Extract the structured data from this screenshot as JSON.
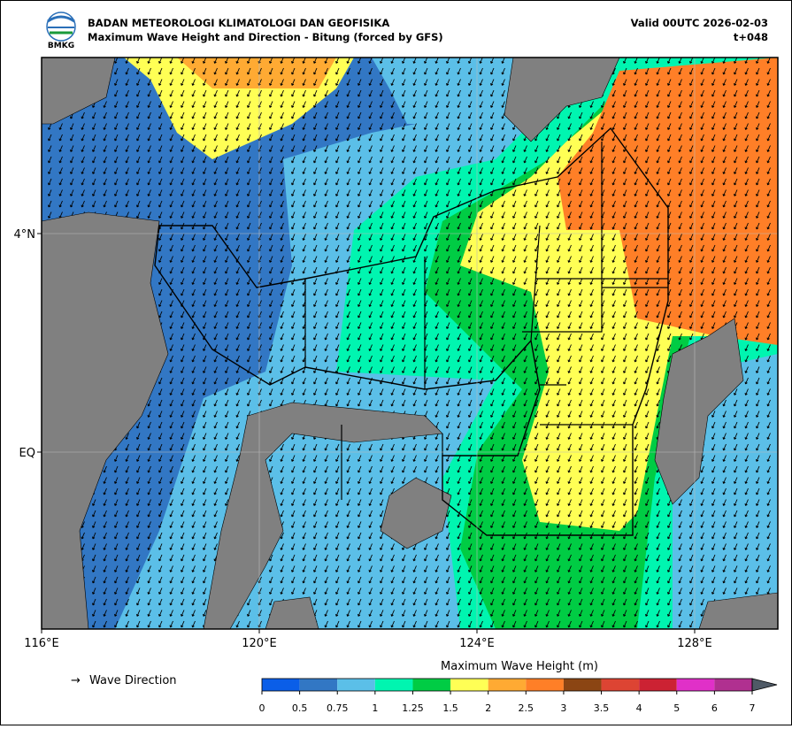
{
  "header": {
    "logo_text": "BMKG",
    "title": "BADAN METEOROLOGI KLIMATOLOGI DAN GEOFISIKA",
    "subtitle": "Maximum Wave Height and Direction - Bitung (forced by GFS)",
    "valid": "Valid 00UTC 2026-02-03",
    "lead": "t+048"
  },
  "map": {
    "lon_ticks": [
      "116°E",
      "120°E",
      "124°E",
      "128°E"
    ],
    "lat_ticks": [
      "4°N",
      "EQ"
    ]
  },
  "legend": {
    "arrow": "→",
    "label": "Wave Direction"
  },
  "colorbar": {
    "title": "Maximum Wave Height (m)",
    "ticks": [
      0,
      0.5,
      0.75,
      1,
      1.25,
      1.5,
      2,
      2.5,
      3,
      3.5,
      4,
      5,
      6,
      7
    ],
    "colors": [
      "#0a5ee8",
      "#3277c4",
      "#5bbfe8",
      "#00f5b0",
      "#00cc44",
      "#ffff55",
      "#ffaa33",
      "#ff7f27",
      "#8b4513",
      "#dd4433",
      "#cc2233",
      "#e030c8",
      "#b03090"
    ],
    "extend_color": "#4f5a66"
  }
}
